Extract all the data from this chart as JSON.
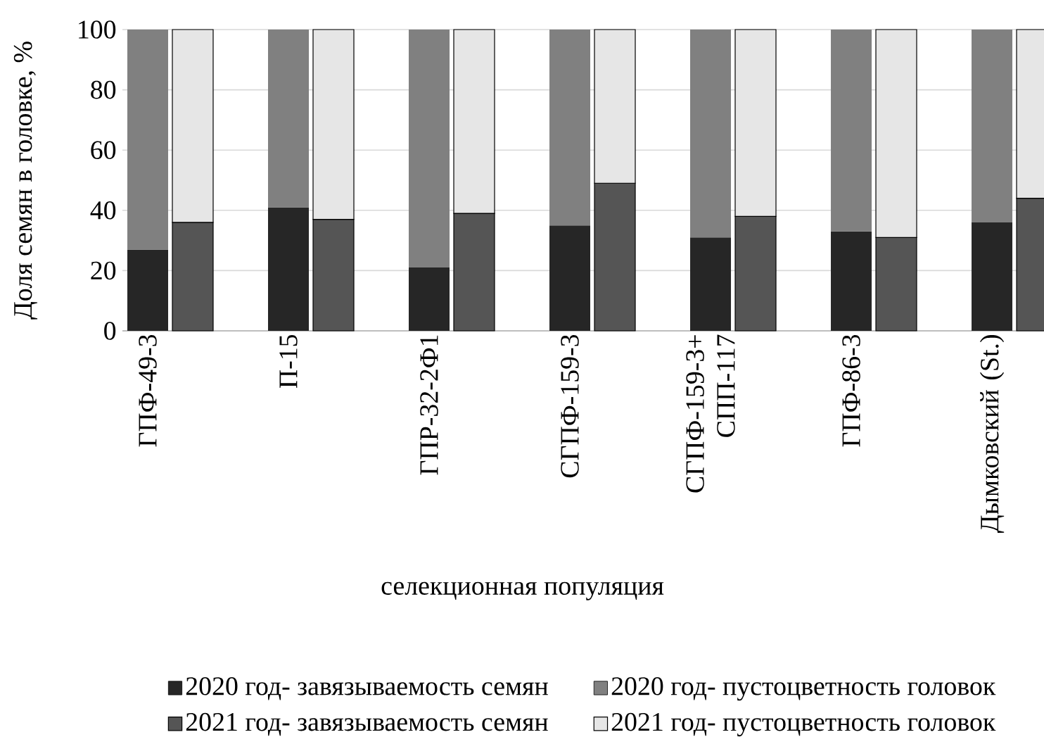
{
  "chart_data": {
    "type": "bar",
    "stacked": true,
    "xlabel": "селекционная популяция",
    "ylabel": "Доля семян в головке, %",
    "categories": [
      "ГПФ-49-3",
      null,
      "П-15",
      null,
      "ГПР-32-2Ф1",
      null,
      "СГПФ-159-3",
      null,
      "СГПФ-159-3+ СПП-117",
      null,
      "ГПФ-86-3",
      null,
      "Дымковский (St.)",
      null
    ],
    "series": [
      {
        "name": "2020 год- завязываемость семян",
        "color": "#262626",
        "values": [
          27,
          null,
          41,
          null,
          21,
          null,
          35,
          null,
          31,
          null,
          33,
          null,
          36,
          null
        ]
      },
      {
        "name": "2020 год- пустоцветность головок",
        "color": "#808080",
        "values": [
          73,
          null,
          59,
          null,
          79,
          null,
          65,
          null,
          69,
          null,
          67,
          null,
          64,
          null
        ]
      },
      {
        "name": "2021 год- завязываемость семян",
        "color": "#555555",
        "values": [
          null,
          36,
          null,
          37,
          null,
          39,
          null,
          49,
          null,
          38,
          null,
          31,
          null,
          44
        ]
      },
      {
        "name": "2021 год- пустоцветность головок",
        "color": "#e6e6e6",
        "values": [
          null,
          64,
          null,
          63,
          null,
          61,
          null,
          51,
          null,
          62,
          null,
          69,
          null,
          56
        ]
      }
    ],
    "ylim": [
      0,
      100
    ],
    "yticks": [
      0,
      20,
      40,
      60,
      80,
      100
    ],
    "grid": "y",
    "legend": "bottom"
  }
}
